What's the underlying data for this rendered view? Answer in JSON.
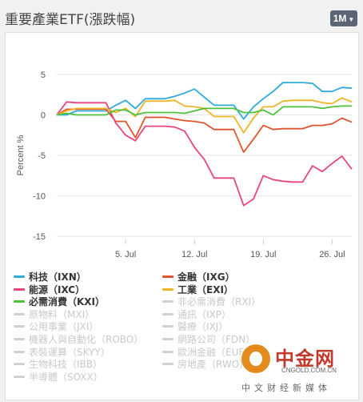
{
  "header": {
    "title": "重要產業ETF(漲跌幅)",
    "period_button": "1M"
  },
  "chart_data": {
    "type": "line",
    "ylabel": "Percent %",
    "ylim": [
      -15,
      5
    ],
    "yticks": [
      5,
      0,
      -5,
      -10,
      -15
    ],
    "xlim": [
      0,
      30
    ],
    "xticks": [
      {
        "label": "5. Jul",
        "x": 7
      },
      {
        "label": "12. Jul",
        "x": 14
      },
      {
        "label": "19. Jul",
        "x": 21
      },
      {
        "label": "26. Jul",
        "x": 28
      }
    ],
    "x": [
      0,
      1,
      2,
      3,
      4,
      5,
      6,
      7,
      8,
      9,
      10,
      11,
      12,
      13,
      14,
      15,
      16,
      17,
      18,
      19,
      20,
      21,
      22,
      23,
      24,
      25,
      26,
      27,
      28,
      29,
      30
    ],
    "series": [
      {
        "name": "科技（IXN）",
        "color": "#2eaadc",
        "values": [
          0,
          0,
          0.5,
          0.5,
          0.5,
          0.5,
          1.2,
          1.8,
          0.8,
          2.0,
          2.0,
          2.0,
          2.3,
          2.7,
          3.2,
          2.2,
          1.2,
          1.2,
          1.2,
          -0.5,
          1.0,
          2.0,
          2.9,
          4.0,
          4.0,
          4.0,
          3.9,
          2.9,
          2.9,
          3.4,
          3.3
        ]
      },
      {
        "name": "金融（IXG）",
        "color": "#e0542e",
        "values": [
          0,
          0.7,
          0.7,
          0.7,
          0.7,
          0.7,
          -0.8,
          -0.8,
          -2.8,
          -0.3,
          -0.3,
          -0.3,
          -0.5,
          -0.7,
          -0.8,
          -1.0,
          -1.8,
          -1.8,
          -1.8,
          -4.6,
          -3.0,
          -1.3,
          -1.8,
          -1.7,
          -1.7,
          -1.7,
          -1.3,
          -1.3,
          -1.1,
          -0.4,
          -0.9
        ]
      },
      {
        "name": "能源（IXC）",
        "color": "#e8467c",
        "values": [
          0,
          1.6,
          1.5,
          1.5,
          1.5,
          1.5,
          -1.0,
          -2.5,
          -3.2,
          -1.4,
          -1.4,
          -1.4,
          -1.5,
          -2.0,
          -4.0,
          -5.5,
          -7.8,
          -7.8,
          -7.8,
          -11.2,
          -10.4,
          -7.5,
          -8.0,
          -8.2,
          -8.3,
          -8.3,
          -6.3,
          -7.0,
          -6.0,
          -5.1,
          -6.7
        ]
      },
      {
        "name": "工業（EXI）",
        "color": "#f0b429",
        "values": [
          0,
          0.5,
          0.8,
          0.8,
          0.8,
          0.8,
          0.3,
          0.8,
          -0.2,
          1.7,
          1.7,
          1.7,
          1.8,
          1.1,
          1.0,
          0.8,
          -0.2,
          -0.2,
          -0.2,
          -2.2,
          -0.4,
          1.0,
          1.0,
          1.7,
          1.8,
          1.8,
          1.8,
          1.5,
          1.4,
          2.1,
          1.6
        ]
      },
      {
        "name": "必需消費（KXI）",
        "color": "#4cc23c",
        "values": [
          0,
          0.2,
          0,
          0,
          0,
          0,
          0.6,
          0.6,
          0,
          0.3,
          0.3,
          0.3,
          0.3,
          0.2,
          0.5,
          0.8,
          0.8,
          0.8,
          0.8,
          0.3,
          0.3,
          0.6,
          0,
          1.0,
          1.0,
          1.0,
          1.0,
          0.8,
          1.0,
          1.1,
          1.1
        ]
      }
    ]
  },
  "legend": {
    "items": [
      {
        "label": "科技（IXN）",
        "color": "#2eaadc",
        "active": true
      },
      {
        "label": "金融（IXG）",
        "color": "#e0542e",
        "active": true
      },
      {
        "label": "能源（IXC）",
        "color": "#e8467c",
        "active": true
      },
      {
        "label": "工業（EXI）",
        "color": "#f0b429",
        "active": true
      },
      {
        "label": "必需消費（KXI）",
        "color": "#4cc23c",
        "active": true
      },
      {
        "label": "非必需消費（RXI）",
        "color": "#cccccc",
        "active": false
      },
      {
        "label": "原物料（MXI）",
        "color": "#cccccc",
        "active": false
      },
      {
        "label": "通訊（IXP）",
        "color": "#cccccc",
        "active": false
      },
      {
        "label": "公用事業（JXI）",
        "color": "#cccccc",
        "active": false
      },
      {
        "label": "醫療（IXJ）",
        "color": "#cccccc",
        "active": false
      },
      {
        "label": "機器人與自動化（ROBO）",
        "color": "#cccccc",
        "active": false
      },
      {
        "label": "網路公司（FDN）",
        "color": "#cccccc",
        "active": false
      },
      {
        "label": "表裝運算（SKYY）",
        "color": "#cccccc",
        "active": false
      },
      {
        "label": "歐洲金融（EUFN）",
        "color": "#cccccc",
        "active": false
      },
      {
        "label": "生物科技（IBB）",
        "color": "#cccccc",
        "active": false
      },
      {
        "label": "房地產（RWO）",
        "color": "#cccccc",
        "active": false
      },
      {
        "label": "半導體（SOXX）",
        "color": "#cccccc",
        "active": false
      }
    ]
  },
  "watermark": {
    "name": "中金网",
    "url": "CNGOLD.COM.CN",
    "slogan": "中文财经新媒体"
  }
}
